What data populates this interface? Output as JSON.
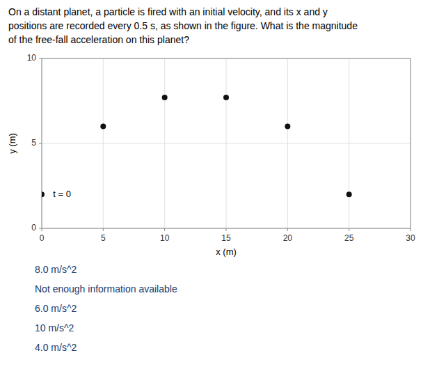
{
  "chart_data": {
    "type": "scatter",
    "title": "On a distant planet, a particle is fired with an initial velocity, and its x and y\npositions are recorded every 0.5 s, as shown in the figure. What is the magnitude\nof the free-fall acceleration on this planet?",
    "x": [
      0,
      5,
      10,
      15,
      20,
      25
    ],
    "values": [
      2.0,
      6.0,
      7.7,
      7.7,
      6.0,
      2.0
    ],
    "color": "#111111",
    "x_label": "x (m)",
    "y_label": "y (m)",
    "xlim": [
      0,
      30
    ],
    "ylim": [
      0,
      10
    ],
    "xticks": [
      0,
      5,
      10,
      15,
      20,
      25,
      30
    ],
    "yticks": [
      0,
      5,
      10
    ],
    "grid": true,
    "annotations": [
      {
        "text": "t = 0",
        "x": 0.7,
        "y": 2.0
      }
    ],
    "answer_choices": [
      "8.0 m/s^2",
      "Not enough information available",
      "6.0 m/s^2",
      "10 m/s^2",
      "4.0 m/s^2"
    ]
  }
}
